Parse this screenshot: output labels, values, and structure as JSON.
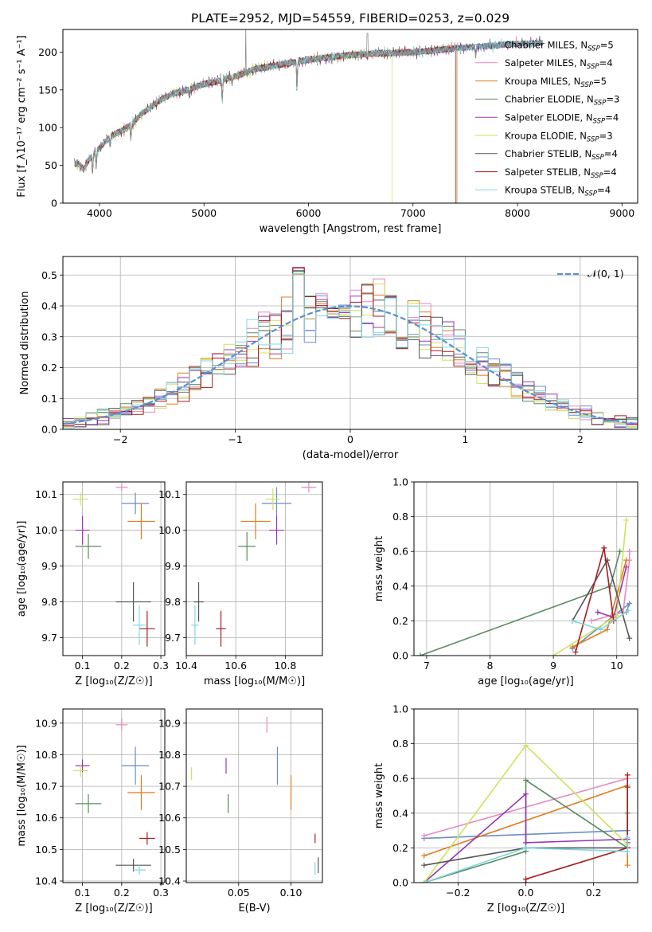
{
  "figure": {
    "title": "PLATE=2952, MJD=54559, FIBERID=0253, z=0.029"
  },
  "models": [
    {
      "name": "Chabrier MILES",
      "nssp": "5",
      "color": "#6c8ebf"
    },
    {
      "name": "Salpeter MILES",
      "nssp": "4",
      "color": "#e589c1"
    },
    {
      "name": "Kroupa MILES",
      "nssp": "5",
      "color": "#e07b20"
    },
    {
      "name": "Chabrier ELODIE",
      "nssp": "3",
      "color": "#5a8a5f"
    },
    {
      "name": "Salpeter ELODIE",
      "nssp": "4",
      "color": "#9b35b3"
    },
    {
      "name": "Kroupa ELODIE",
      "nssp": "3",
      "color": "#cde35a"
    },
    {
      "name": "Chabrier STELIB",
      "nssp": "4",
      "color": "#555555"
    },
    {
      "name": "Salpeter STELIB",
      "nssp": "4",
      "color": "#a81c1c"
    },
    {
      "name": "Kroupa STELIB",
      "nssp": "4",
      "color": "#7fd8e0"
    }
  ],
  "chart_data": [
    {
      "id": "spectrum",
      "type": "line",
      "xlabel": "wavelength [Angstrom, rest frame]",
      "ylabel": "Flux [f_λ10⁻¹⁷ erg cm⁻² s⁻¹ A⁻¹]",
      "xlim": [
        3650,
        9150
      ],
      "ylim": [
        0,
        230
      ],
      "xticks": [
        4000,
        5000,
        6000,
        7000,
        8000,
        9000
      ],
      "yticks": [
        0,
        50,
        100,
        150,
        200
      ],
      "legend": "right",
      "continuum": [
        [
          3800,
          52
        ],
        [
          3850,
          45
        ],
        [
          3900,
          58
        ],
        [
          4000,
          73
        ],
        [
          4100,
          88
        ],
        [
          4200,
          95
        ],
        [
          4300,
          103
        ],
        [
          4400,
          118
        ],
        [
          4500,
          128
        ],
        [
          4600,
          138
        ],
        [
          4700,
          145
        ],
        [
          4800,
          148
        ],
        [
          4900,
          153
        ],
        [
          5000,
          158
        ],
        [
          5100,
          160
        ],
        [
          5200,
          164
        ],
        [
          5300,
          168
        ],
        [
          5400,
          173
        ],
        [
          5500,
          178
        ],
        [
          5600,
          180
        ],
        [
          5700,
          183
        ],
        [
          5800,
          185
        ],
        [
          5900,
          188
        ],
        [
          6000,
          190
        ],
        [
          6200,
          193
        ],
        [
          6400,
          196
        ],
        [
          6600,
          198
        ],
        [
          6800,
          199
        ],
        [
          7000,
          200
        ],
        [
          7200,
          202
        ],
        [
          7400,
          205
        ],
        [
          7600,
          207
        ],
        [
          7800,
          209
        ],
        [
          8000,
          211
        ],
        [
          8200,
          212
        ]
      ],
      "absorption_features": [
        [
          3934,
          22
        ],
        [
          3969,
          20
        ],
        [
          4102,
          10
        ],
        [
          4300,
          18
        ],
        [
          4861,
          8
        ],
        [
          5175,
          28
        ],
        [
          5270,
          8
        ],
        [
          5890,
          35
        ],
        [
          6563,
          5
        ],
        [
          7600,
          12
        ]
      ],
      "model_cutoffs": [
        {
          "model": "Kroupa ELODIE",
          "x": 6800
        },
        {
          "model": "Salpeter STELIB",
          "x": 7410
        },
        {
          "model": "Chabrier MILES",
          "x": 7420
        },
        {
          "model": "Kroupa MILES",
          "x": 7420
        }
      ]
    },
    {
      "id": "residual-histogram",
      "type": "step",
      "xlabel": "(data-model)/error",
      "ylabel": "Normed distribution",
      "xlim": [
        -2.5,
        2.5
      ],
      "ylim": [
        0,
        0.56
      ],
      "xticks": [
        -2,
        -1,
        0,
        1,
        2
      ],
      "yticks": [
        0.0,
        0.1,
        0.2,
        0.3,
        0.4,
        0.5
      ],
      "bin_width": 0.1,
      "reference": {
        "label": "𝒩(0, 1)",
        "mean": 0,
        "sigma": 1,
        "color": "#5b8fd6"
      },
      "legend": "top-right"
    },
    {
      "id": "age-vs-Z",
      "type": "errorbar",
      "xlabel": "Z [log₁₀(Z/Z☉)]",
      "ylabel": "age  [log₁₀(age/yr)]",
      "xlim": [
        0.05,
        0.31
      ],
      "ylim": [
        9.65,
        10.135
      ],
      "xticks": [
        0.1,
        0.2,
        0.3
      ],
      "yticks": [
        9.7,
        9.8,
        9.9,
        10.0,
        10.1
      ],
      "points": [
        {
          "model": "Chabrier MILES",
          "x": 0.235,
          "y": 10.075,
          "xerr": 0.035,
          "yerr": 0.03
        },
        {
          "model": "Salpeter MILES",
          "x": 0.2,
          "y": 10.12,
          "xerr": 0.015,
          "yerr": 0.01
        },
        {
          "model": "Kroupa MILES",
          "x": 0.25,
          "y": 10.025,
          "xerr": 0.035,
          "yerr": 0.05
        },
        {
          "model": "Chabrier ELODIE",
          "x": 0.115,
          "y": 9.955,
          "xerr": 0.033,
          "yerr": 0.035
        },
        {
          "model": "Salpeter ELODIE",
          "x": 0.1,
          "y": 10.0,
          "xerr": 0.018,
          "yerr": 0.04
        },
        {
          "model": "Kroupa ELODIE",
          "x": 0.095,
          "y": 10.087,
          "xerr": 0.02,
          "yerr": 0.018
        },
        {
          "model": "Chabrier STELIB",
          "x": 0.23,
          "y": 9.8,
          "xerr": 0.045,
          "yerr": 0.055
        },
        {
          "model": "Salpeter STELIB",
          "x": 0.265,
          "y": 9.725,
          "xerr": 0.02,
          "yerr": 0.05
        },
        {
          "model": "Kroupa STELIB",
          "x": 0.245,
          "y": 9.735,
          "xerr": 0.016,
          "yerr": 0.055
        }
      ]
    },
    {
      "id": "age-vs-mass",
      "type": "errorbar",
      "xlabel": "mass [log₁₀(M/M☉)]",
      "ylabel": "",
      "xlim": [
        10.4,
        10.95
      ],
      "ylim": [
        9.65,
        10.135
      ],
      "xticks": [
        10.4,
        10.6,
        10.8
      ],
      "yticks": [
        9.7,
        9.8,
        9.9,
        10.0,
        10.1
      ],
      "points": [
        {
          "model": "Chabrier MILES",
          "x": 10.765,
          "y": 10.075,
          "xerr": 0.06,
          "yerr": 0.045
        },
        {
          "model": "Salpeter MILES",
          "x": 10.895,
          "y": 10.12,
          "xerr": 0.03,
          "yerr": 0.015
        },
        {
          "model": "Kroupa MILES",
          "x": 10.68,
          "y": 10.025,
          "xerr": 0.06,
          "yerr": 0.05
        },
        {
          "model": "Chabrier ELODIE",
          "x": 10.645,
          "y": 9.955,
          "xerr": 0.035,
          "yerr": 0.04
        },
        {
          "model": "Salpeter ELODIE",
          "x": 10.765,
          "y": 10.0,
          "xerr": 0.03,
          "yerr": 0.04
        },
        {
          "model": "Kroupa ELODIE",
          "x": 10.75,
          "y": 10.087,
          "xerr": 0.03,
          "yerr": 0.03
        },
        {
          "model": "Chabrier STELIB",
          "x": 10.45,
          "y": 9.8,
          "xerr": 0.02,
          "yerr": 0.055
        },
        {
          "model": "Salpeter STELIB",
          "x": 10.54,
          "y": 9.725,
          "xerr": 0.02,
          "yerr": 0.05
        },
        {
          "model": "Kroupa STELIB",
          "x": 10.435,
          "y": 9.735,
          "xerr": 0.015,
          "yerr": 0.055
        }
      ]
    },
    {
      "id": "weight-vs-age",
      "type": "line",
      "xlabel": "age  [log₁₀(age/yr)]",
      "ylabel": "mass weight",
      "xlim": [
        6.8,
        10.33
      ],
      "ylim": [
        0,
        1.0
      ],
      "xticks": [
        7,
        8,
        9,
        10
      ],
      "yticks": [
        0.0,
        0.2,
        0.4,
        0.6,
        0.8,
        1.0
      ],
      "series": [
        {
          "model": "Chabrier MILES",
          "x": [
            9.3,
            10.2,
            10.15
          ],
          "y": [
            0.04,
            0.3,
            0.25
          ]
        },
        {
          "model": "Salpeter MILES",
          "x": [
            9.6,
            10.1,
            10.2,
            10.2
          ],
          "y": [
            0.2,
            0.25,
            0.55,
            0.6
          ]
        },
        {
          "model": "Kroupa MILES",
          "x": [
            9.3,
            9.85,
            10.15
          ],
          "y": [
            0.05,
            0.15,
            0.55
          ]
        },
        {
          "model": "Chabrier ELODIE",
          "x": [
            6.9,
            9.9,
            10.05
          ],
          "y": [
            0.0,
            0.4,
            0.6
          ]
        },
        {
          "model": "Salpeter ELODIE",
          "x": [
            9.7,
            9.95,
            10.15
          ],
          "y": [
            0.25,
            0.22,
            0.51
          ]
        },
        {
          "model": "Kroupa ELODIE",
          "x": [
            9.0,
            10.0,
            10.15
          ],
          "y": [
            0.0,
            0.23,
            0.78
          ]
        },
        {
          "model": "Chabrier STELIB",
          "x": [
            9.3,
            9.85,
            10.2
          ],
          "y": [
            0.2,
            0.55,
            0.1
          ]
        },
        {
          "model": "Salpeter STELIB",
          "x": [
            9.35,
            9.8,
            9.95
          ],
          "y": [
            0.02,
            0.62,
            0.2
          ]
        },
        {
          "model": "Kroupa STELIB",
          "x": [
            9.3,
            9.75,
            10.18
          ],
          "y": [
            0.2,
            0.15,
            0.26
          ]
        }
      ]
    },
    {
      "id": "mass-vs-Z",
      "type": "errorbar",
      "xlabel": "Z [log₁₀(Z/Z☉)]",
      "ylabel": "mass [log₁₀(M/M☉)]",
      "xlim": [
        0.05,
        0.31
      ],
      "ylim": [
        10.395,
        10.945
      ],
      "xticks": [
        0.1,
        0.2,
        0.3
      ],
      "yticks": [
        10.4,
        10.5,
        10.6,
        10.7,
        10.8,
        10.9
      ],
      "points": [
        {
          "model": "Chabrier MILES",
          "x": 0.235,
          "y": 10.765,
          "xerr": 0.035,
          "yerr": 0.06
        },
        {
          "model": "Salpeter MILES",
          "x": 0.2,
          "y": 10.895,
          "xerr": 0.015,
          "yerr": 0.02
        },
        {
          "model": "Kroupa MILES",
          "x": 0.25,
          "y": 10.68,
          "xerr": 0.035,
          "yerr": 0.055
        },
        {
          "model": "Chabrier ELODIE",
          "x": 0.115,
          "y": 10.645,
          "xerr": 0.033,
          "yerr": 0.03
        },
        {
          "model": "Salpeter ELODIE",
          "x": 0.1,
          "y": 10.765,
          "xerr": 0.018,
          "yerr": 0.02
        },
        {
          "model": "Kroupa ELODIE",
          "x": 0.095,
          "y": 10.75,
          "xerr": 0.02,
          "yerr": 0.02
        },
        {
          "model": "Chabrier STELIB",
          "x": 0.23,
          "y": 10.45,
          "xerr": 0.045,
          "yerr": 0.02
        },
        {
          "model": "Salpeter STELIB",
          "x": 0.265,
          "y": 10.535,
          "xerr": 0.02,
          "yerr": 0.02
        },
        {
          "model": "Kroupa STELIB",
          "x": 0.245,
          "y": 10.435,
          "xerr": 0.016,
          "yerr": 0.015
        }
      ]
    },
    {
      "id": "mass-vs-ebv",
      "type": "errorbar",
      "xlabel": "E(B-V)",
      "ylabel": "",
      "xlim": [
        0.0,
        0.13
      ],
      "ylim": [
        10.395,
        10.945
      ],
      "xticks": [
        0.05,
        0.1
      ],
      "yticks": [
        10.4,
        10.5,
        10.6,
        10.7,
        10.8,
        10.9
      ],
      "points": [
        {
          "model": "Chabrier MILES",
          "x": 0.087,
          "y": 10.765,
          "xerr": 0,
          "yerr": 0.06
        },
        {
          "model": "Salpeter MILES",
          "x": 0.077,
          "y": 10.895,
          "xerr": 0,
          "yerr": 0.025
        },
        {
          "model": "Kroupa MILES",
          "x": 0.1,
          "y": 10.68,
          "xerr": 0,
          "yerr": 0.055
        },
        {
          "model": "Chabrier ELODIE",
          "x": 0.04,
          "y": 10.645,
          "xerr": 0,
          "yerr": 0.03
        },
        {
          "model": "Salpeter ELODIE",
          "x": 0.038,
          "y": 10.765,
          "xerr": 0,
          "yerr": 0.025
        },
        {
          "model": "Kroupa ELODIE",
          "x": 0.005,
          "y": 10.74,
          "xerr": 0,
          "yerr": 0.02
        },
        {
          "model": "Chabrier STELIB",
          "x": 0.126,
          "y": 10.45,
          "xerr": 0,
          "yerr": 0.025
        },
        {
          "model": "Salpeter STELIB",
          "x": 0.123,
          "y": 10.535,
          "xerr": 0,
          "yerr": 0.015
        },
        {
          "model": "Kroupa STELIB",
          "x": 0.123,
          "y": 10.44,
          "xerr": 0,
          "yerr": 0.02
        }
      ]
    },
    {
      "id": "weight-vs-Z",
      "type": "line",
      "xlabel": "Z [log₁₀(Z/Z☉)]",
      "ylabel": "mass weight",
      "xlim": [
        -0.33,
        0.33
      ],
      "ylim": [
        0,
        1.0
      ],
      "xticks": [
        -0.2,
        0.0,
        0.2
      ],
      "yticks": [
        0.0,
        0.2,
        0.4,
        0.6,
        0.8,
        1.0
      ],
      "series": [
        {
          "model": "Chabrier MILES",
          "x": [
            -0.3,
            0.3,
            0.3
          ],
          "y": [
            0.255,
            0.3,
            0.25
          ]
        },
        {
          "model": "Salpeter MILES",
          "x": [
            -0.3,
            0.3,
            0.3
          ],
          "y": [
            0.27,
            0.6,
            0.55
          ]
        },
        {
          "model": "Kroupa MILES",
          "x": [
            -0.3,
            0.3,
            0.3
          ],
          "y": [
            0.155,
            0.56,
            0.1
          ]
        },
        {
          "model": "Chabrier ELODIE",
          "x": [
            -0.3,
            0.0,
            0.0,
            0.3,
            0.3
          ],
          "y": [
            0.0,
            0.18,
            0.59,
            0.2,
            0.4
          ]
        },
        {
          "model": "Salpeter ELODIE",
          "x": [
            -0.3,
            0.0,
            0.0,
            0.3,
            0.3
          ],
          "y": [
            0.0,
            0.51,
            0.23,
            0.25,
            0.23
          ]
        },
        {
          "model": "Kroupa ELODIE",
          "x": [
            -0.3,
            0.0,
            0.3
          ],
          "y": [
            0.0,
            0.79,
            0.22
          ]
        },
        {
          "model": "Chabrier STELIB",
          "x": [
            -0.3,
            0.0,
            0.3,
            0.3
          ],
          "y": [
            0.1,
            0.2,
            0.2,
            0.55
          ]
        },
        {
          "model": "Salpeter STELIB",
          "x": [
            0.0,
            0.0,
            0.3,
            0.3
          ],
          "y": [
            0.0,
            0.02,
            0.2,
            0.62
          ]
        },
        {
          "model": "Kroupa STELIB",
          "x": [
            -0.3,
            0.0,
            0.3,
            0.3
          ],
          "y": [
            0.0,
            0.2,
            0.18,
            0.26
          ]
        }
      ]
    }
  ]
}
